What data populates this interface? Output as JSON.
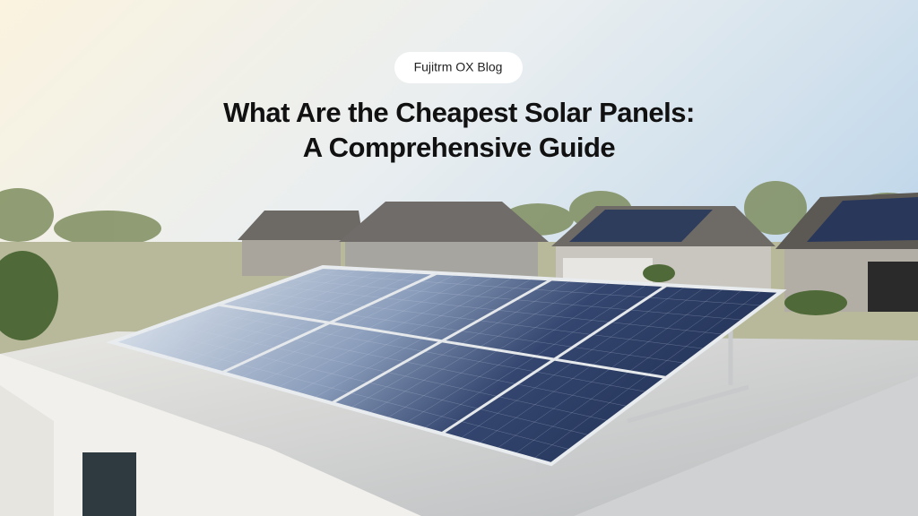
{
  "badge": "Fujitrm OX Blog",
  "title": [
    "What Are the Cheapest Solar Panels:",
    "A Comprehensive Guide"
  ]
}
